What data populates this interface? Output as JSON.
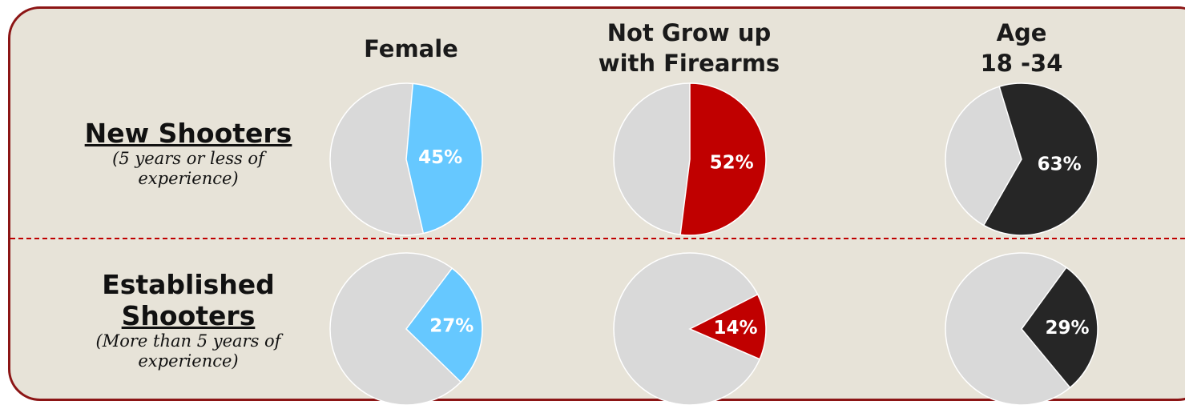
{
  "columns": [
    "Female",
    "Not Grow up\nwith Firearms",
    "Age\n18 -34"
  ],
  "rows": [
    {
      "title_line1": "",
      "title_line2": "New Shooters",
      "subtitle_line1": "(5 years or less of",
      "subtitle_line2": "experience)"
    },
    {
      "title_line1": "Established",
      "title_line2": "Shooters",
      "subtitle_line1": "(More than 5 years of",
      "subtitle_line2": "experience)"
    }
  ],
  "colors": {
    "female": "#66c8ff",
    "not_grow_up": "#c00000",
    "age": "#262626",
    "remainder": "#d9d9d9",
    "panel": "#e7e3d8",
    "border": "#8c1515",
    "divider": "#c00000"
  },
  "chart_data": {
    "type": "pie",
    "categories": [
      "Female",
      "Not Grow up with Firearms",
      "Age 18 -34"
    ],
    "series": [
      {
        "name": "New Shooters",
        "values": [
          45,
          52,
          63
        ],
        "labels": [
          "45%",
          "52%",
          "63%"
        ]
      },
      {
        "name": "Established Shooters",
        "values": [
          27,
          14,
          29
        ],
        "labels": [
          "27%",
          "14%",
          "29%"
        ]
      }
    ],
    "unit": "%"
  }
}
